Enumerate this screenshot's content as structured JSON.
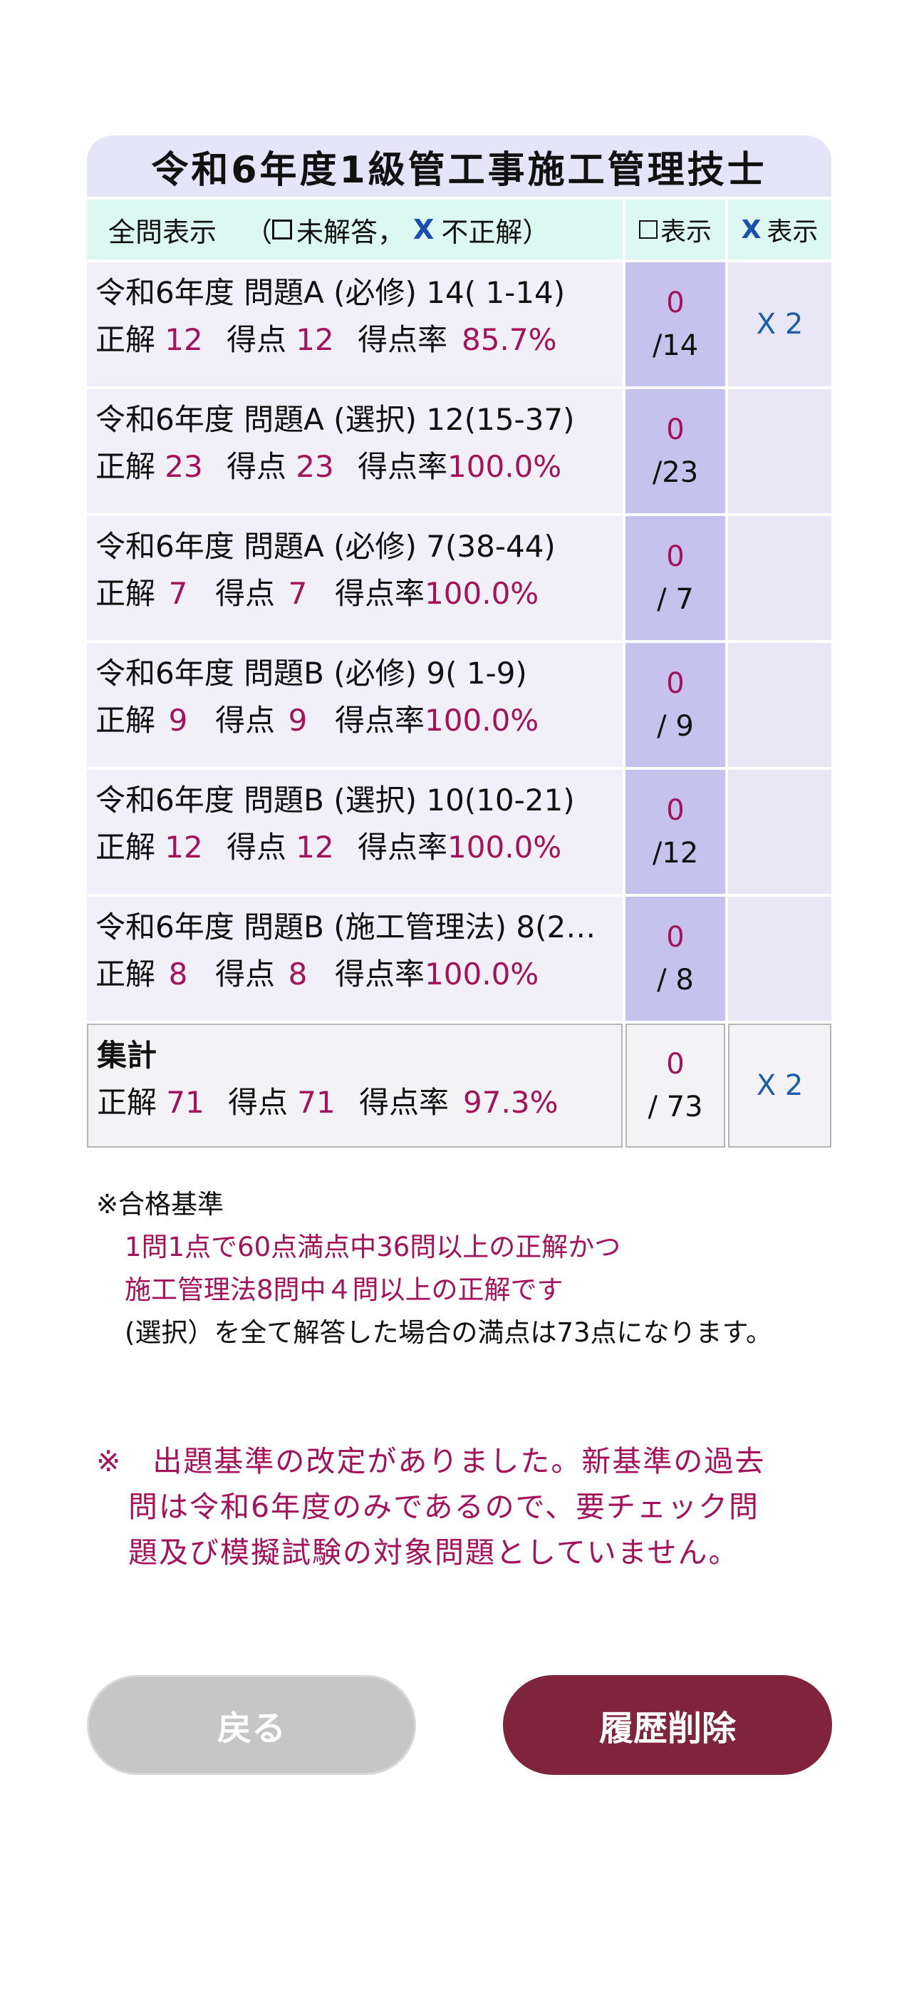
{
  "title": "令和6年度1級管工事施工管理技士",
  "header": {
    "show_all": "全問表示",
    "paren_open": "（",
    "unanswered": "未解答，",
    "x_mark": "X",
    "incorrect": "不正解",
    "paren_close": "）",
    "show_label_mid": "表示",
    "show_label_x": "表示"
  },
  "labels": {
    "correct": "正解",
    "score": "得点",
    "rate": "得点率"
  },
  "rows": [
    {
      "title": "令和6年度 問題A (必修) 14( 1-14)",
      "correct": "12",
      "score": "12",
      "rate": "85.7%",
      "unanswered": "0",
      "total": "/14",
      "x": "X 2"
    },
    {
      "title": "令和6年度 問題A (選択) 12(15-37)",
      "correct": "23",
      "score": "23",
      "rate": "100.0%",
      "unanswered": "0",
      "total": "/23",
      "x": ""
    },
    {
      "title": "令和6年度 問題A (必修) 7(38-44)",
      "correct": "7",
      "score": "7",
      "rate": "100.0%",
      "unanswered": "0",
      "total": "/ 7",
      "x": ""
    },
    {
      "title": "令和6年度 問題B (必修) 9( 1-9)",
      "correct": "9",
      "score": "9",
      "rate": "100.0%",
      "unanswered": "0",
      "total": "/ 9",
      "x": ""
    },
    {
      "title": "令和6年度 問題B (選択) 10(10-21)",
      "correct": "12",
      "score": "12",
      "rate": "100.0%",
      "unanswered": "0",
      "total": "/12",
      "x": ""
    },
    {
      "title": "令和6年度 問題B (施工管理法) 8(2…",
      "correct": "8",
      "score": "8",
      "rate": "100.0%",
      "unanswered": "0",
      "total": "/ 8",
      "x": ""
    }
  ],
  "total": {
    "label": "集計",
    "correct": "71",
    "score": "71",
    "rate": "97.3%",
    "unanswered": "0",
    "total": "/ 73",
    "x": "X 2"
  },
  "notes": {
    "heading": "※合格基準",
    "line1": "1問1点で60点満点中36問以上の正解かつ",
    "line2": "施工管理法8問中４問以上の正解です",
    "line3": "(選択）を全て解答した場合の満点は73点になります。"
  },
  "warning": {
    "line1": "※　出題基準の改定がありました。新基準の過去",
    "line2": "問は令和6年度のみであるので、要チェック問",
    "line3": "題及び模擬試験の対象問題としていません。"
  },
  "buttons": {
    "back": "戻る",
    "delete": "履歴削除"
  },
  "colors": {
    "accent_red": "#a3125a",
    "button_delete": "#80233c",
    "mid_cell": "#c6c2ee",
    "header_bg": "#dcf8f0"
  }
}
